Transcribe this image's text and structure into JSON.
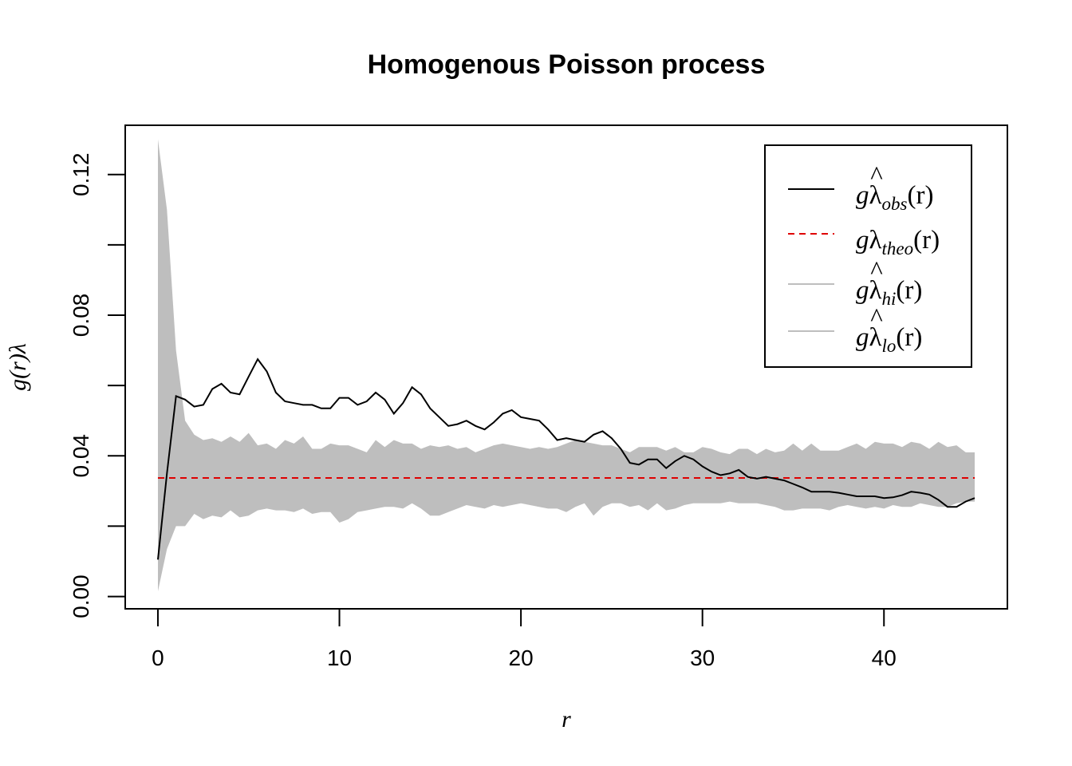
{
  "chart_data": {
    "type": "line",
    "title": "Homogenous Poisson process",
    "xlabel": "r",
    "ylabel": "g(r)λ",
    "xlim": [
      -1.8,
      46.8
    ],
    "ylim": [
      -0.0035,
      0.134
    ],
    "x_ticks": [
      0,
      10,
      20,
      30,
      40
    ],
    "x_tick_labels": [
      "0",
      "10",
      "20",
      "30",
      "40"
    ],
    "y_ticks": [
      0.0,
      0.02,
      0.04,
      0.06,
      0.08,
      0.1,
      0.12
    ],
    "y_tick_labels": [
      "0.00",
      "",
      "0.04",
      "",
      "0.08",
      "",
      "0.12"
    ],
    "grid": false,
    "legend_position": "top-right",
    "legend": [
      {
        "main": "g",
        "hat": "^",
        "sym": "λ",
        "sub": "obs",
        "tail": "(r)",
        "color": "#000000",
        "style": "solid"
      },
      {
        "main": "g",
        "hat": "",
        "sym": "λ",
        "sub": "theo",
        "tail": "(r)",
        "color": "#DF0000",
        "style": "dashed"
      },
      {
        "main": "g",
        "hat": "^",
        "sym": "λ",
        "sub": "hi",
        "tail": "(r)",
        "color": "#BEBEBE",
        "style": "solid"
      },
      {
        "main": "g",
        "hat": "^",
        "sym": "λ",
        "sub": "lo",
        "tail": "(r)",
        "color": "#BEBEBE",
        "style": "solid"
      }
    ],
    "colors": {
      "obs": "#000000",
      "theo": "#DF0000",
      "envelope": "#BEBEBE"
    },
    "theo": 0.0337,
    "series": [
      {
        "name": "obs",
        "x": [
          0,
          0.5,
          1,
          1.5,
          2,
          2.5,
          3,
          3.5,
          4,
          4.5,
          5,
          5.5,
          6,
          6.5,
          7,
          7.5,
          8,
          8.5,
          9,
          9.5,
          10,
          10.5,
          11,
          11.5,
          12,
          12.5,
          13,
          13.5,
          14,
          14.5,
          15,
          15.5,
          16,
          16.5,
          17,
          17.5,
          18,
          18.5,
          19,
          19.5,
          20,
          20.5,
          21,
          21.5,
          22,
          22.5,
          23,
          23.5,
          24,
          24.5,
          25,
          25.5,
          26,
          26.5,
          27,
          27.5,
          28,
          28.5,
          29,
          29.5,
          30,
          30.5,
          31,
          31.5,
          32,
          32.5,
          33,
          33.5,
          34,
          34.5,
          35,
          35.5,
          36,
          36.5,
          37,
          37.5,
          38,
          38.5,
          39,
          39.5,
          40,
          40.5,
          41,
          41.5,
          42,
          42.5,
          43,
          43.5,
          44,
          44.5,
          45
        ],
        "y": [
          0.0105,
          0.035,
          0.057,
          0.056,
          0.054,
          0.0545,
          0.059,
          0.0605,
          0.058,
          0.0575,
          0.0625,
          0.0675,
          0.064,
          0.058,
          0.0555,
          0.055,
          0.0545,
          0.0545,
          0.0535,
          0.0535,
          0.0565,
          0.0565,
          0.0545,
          0.0555,
          0.058,
          0.056,
          0.052,
          0.055,
          0.0595,
          0.0575,
          0.0535,
          0.051,
          0.0485,
          0.049,
          0.05,
          0.0485,
          0.0475,
          0.0495,
          0.052,
          0.053,
          0.051,
          0.0505,
          0.05,
          0.0475,
          0.0445,
          0.045,
          0.0445,
          0.044,
          0.046,
          0.047,
          0.045,
          0.042,
          0.038,
          0.0375,
          0.039,
          0.039,
          0.0365,
          0.0385,
          0.04,
          0.039,
          0.037,
          0.0355,
          0.0345,
          0.035,
          0.036,
          0.034,
          0.0335,
          0.034,
          0.0335,
          0.033,
          0.032,
          0.031,
          0.0298,
          0.0298,
          0.0298,
          0.0295,
          0.029,
          0.0285,
          0.0285,
          0.0285,
          0.028,
          0.0282,
          0.0288,
          0.0298,
          0.0295,
          0.029,
          0.0275,
          0.0255,
          0.0255,
          0.027,
          0.028
        ]
      },
      {
        "name": "hi",
        "x": [
          0,
          0.5,
          1,
          1.5,
          2,
          2.5,
          3,
          3.5,
          4,
          4.5,
          5,
          5.5,
          6,
          6.5,
          7,
          7.5,
          8,
          8.5,
          9,
          9.5,
          10,
          10.5,
          11,
          11.5,
          12,
          12.5,
          13,
          13.5,
          14,
          14.5,
          15,
          15.5,
          16,
          16.5,
          17,
          17.5,
          18,
          18.5,
          19,
          19.5,
          20,
          20.5,
          21,
          21.5,
          22,
          22.5,
          23,
          23.5,
          24,
          24.5,
          25,
          25.5,
          26,
          26.5,
          27,
          27.5,
          28,
          28.5,
          29,
          29.5,
          30,
          30.5,
          31,
          31.5,
          32,
          32.5,
          33,
          33.5,
          34,
          34.5,
          35,
          35.5,
          36,
          36.5,
          37,
          37.5,
          38,
          38.5,
          39,
          39.5,
          40,
          40.5,
          41,
          41.5,
          42,
          42.5,
          43,
          43.5,
          44,
          44.5,
          45
        ],
        "y": [
          0.13,
          0.11,
          0.07,
          0.05,
          0.046,
          0.0445,
          0.045,
          0.044,
          0.0455,
          0.044,
          0.0465,
          0.043,
          0.0435,
          0.042,
          0.0445,
          0.0435,
          0.0455,
          0.042,
          0.042,
          0.0435,
          0.043,
          0.043,
          0.042,
          0.041,
          0.0445,
          0.0425,
          0.0445,
          0.0435,
          0.0435,
          0.042,
          0.043,
          0.0425,
          0.043,
          0.042,
          0.0425,
          0.041,
          0.042,
          0.043,
          0.0435,
          0.043,
          0.0425,
          0.042,
          0.0425,
          0.042,
          0.0425,
          0.0435,
          0.0445,
          0.044,
          0.0435,
          0.043,
          0.043,
          0.042,
          0.041,
          0.0425,
          0.0425,
          0.0425,
          0.0415,
          0.0425,
          0.041,
          0.041,
          0.0425,
          0.042,
          0.041,
          0.0405,
          0.042,
          0.042,
          0.0405,
          0.042,
          0.041,
          0.0415,
          0.0435,
          0.0415,
          0.0435,
          0.0415,
          0.0415,
          0.0415,
          0.0425,
          0.0435,
          0.042,
          0.044,
          0.0435,
          0.0435,
          0.0425,
          0.044,
          0.0435,
          0.042,
          0.044,
          0.0425,
          0.043,
          0.041,
          0.041
        ]
      },
      {
        "name": "lo",
        "x": [
          0,
          0.5,
          1,
          1.5,
          2,
          2.5,
          3,
          3.5,
          4,
          4.5,
          5,
          5.5,
          6,
          6.5,
          7,
          7.5,
          8,
          8.5,
          9,
          9.5,
          10,
          10.5,
          11,
          11.5,
          12,
          12.5,
          13,
          13.5,
          14,
          14.5,
          15,
          15.5,
          16,
          16.5,
          17,
          17.5,
          18,
          18.5,
          19,
          19.5,
          20,
          20.5,
          21,
          21.5,
          22,
          22.5,
          23,
          23.5,
          24,
          24.5,
          25,
          25.5,
          26,
          26.5,
          27,
          27.5,
          28,
          28.5,
          29,
          29.5,
          30,
          30.5,
          31,
          31.5,
          32,
          32.5,
          33,
          33.5,
          34,
          34.5,
          35,
          35.5,
          36,
          36.5,
          37,
          37.5,
          38,
          38.5,
          39,
          39.5,
          40,
          40.5,
          41,
          41.5,
          42,
          42.5,
          43,
          43.5,
          44,
          44.5,
          45
        ],
        "y": [
          0.0015,
          0.0135,
          0.02,
          0.02,
          0.0235,
          0.022,
          0.023,
          0.0225,
          0.0245,
          0.0225,
          0.023,
          0.0245,
          0.025,
          0.0245,
          0.0245,
          0.024,
          0.025,
          0.0235,
          0.024,
          0.024,
          0.021,
          0.022,
          0.024,
          0.0245,
          0.025,
          0.0255,
          0.0255,
          0.025,
          0.0265,
          0.025,
          0.023,
          0.023,
          0.024,
          0.025,
          0.026,
          0.0255,
          0.025,
          0.026,
          0.0255,
          0.026,
          0.0265,
          0.026,
          0.0255,
          0.025,
          0.025,
          0.024,
          0.0255,
          0.0265,
          0.023,
          0.0255,
          0.0265,
          0.0265,
          0.0255,
          0.026,
          0.0245,
          0.0265,
          0.0245,
          0.025,
          0.026,
          0.0265,
          0.0265,
          0.0265,
          0.0265,
          0.027,
          0.0265,
          0.0265,
          0.0265,
          0.026,
          0.0255,
          0.0245,
          0.0245,
          0.025,
          0.025,
          0.025,
          0.0245,
          0.0255,
          0.026,
          0.0255,
          0.025,
          0.0255,
          0.025,
          0.026,
          0.0255,
          0.0255,
          0.0265,
          0.026,
          0.0255,
          0.0255,
          0.0265,
          0.027,
          0.027
        ]
      }
    ]
  }
}
